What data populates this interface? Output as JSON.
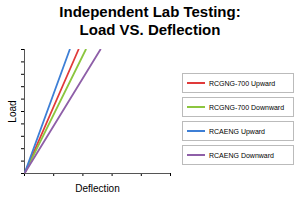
{
  "chart_data": {
    "type": "line",
    "title": "Independent Lab Testing:\nLoad VS. Deflection",
    "x_label": "Deflection",
    "y_label": "Load",
    "xlim": [
      0,
      10
    ],
    "ylim": [
      0,
      10
    ],
    "xticks": [
      0,
      2,
      4,
      6,
      8,
      10
    ],
    "yticks": [
      0,
      1,
      2,
      3,
      4,
      5,
      6,
      7,
      8,
      9,
      10
    ],
    "tick_labels": false,
    "grid": false,
    "legend": "right",
    "series": [
      {
        "name": "RCGNG-700 Upward",
        "color": "#e03a3a",
        "x": [
          0,
          3.7
        ],
        "values": [
          0,
          10
        ]
      },
      {
        "name": "RCGNG-700 Downward",
        "color": "#8cc63f",
        "x": [
          0,
          4.2
        ],
        "values": [
          0,
          10
        ]
      },
      {
        "name": "RCAENG Upward",
        "color": "#3d7fd6",
        "x": [
          0,
          3.1
        ],
        "values": [
          0,
          10
        ]
      },
      {
        "name": "RCAENG Downward",
        "color": "#8e5fa8",
        "x": [
          0,
          5.2
        ],
        "values": [
          0,
          10
        ]
      }
    ]
  }
}
